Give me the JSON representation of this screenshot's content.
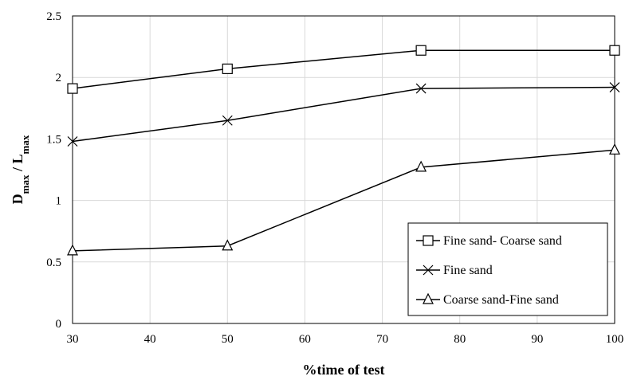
{
  "chart_data": {
    "type": "line",
    "x": [
      30,
      50,
      75,
      100
    ],
    "series": [
      {
        "name": "Fine sand- Coarse sand",
        "marker": "square",
        "values": [
          1.91,
          2.07,
          2.22,
          2.22
        ]
      },
      {
        "name": "Fine sand",
        "marker": "x",
        "values": [
          1.48,
          1.65,
          1.91,
          1.92
        ]
      },
      {
        "name": "Coarse sand-Fine sand",
        "marker": "triangle",
        "values": [
          0.59,
          0.63,
          1.27,
          1.41
        ]
      }
    ],
    "xlabel": "%time of test",
    "ylabel_main": "D",
    "ylabel_sub1": "max",
    "ylabel_sep": " / ",
    "ylabel_main2": "L",
    "ylabel_sub2": "max",
    "xlim": [
      30,
      100
    ],
    "ylim": [
      0,
      2.5
    ],
    "xticks": [
      "30",
      "40",
      "50",
      "60",
      "70",
      "80",
      "90",
      "100"
    ],
    "yticks": [
      "0",
      "0.5",
      "1",
      "1.5",
      "2",
      "2.5"
    ],
    "grid": true,
    "legend_position": "bottom-right",
    "colors": {
      "line": "#000000",
      "grid": "#d9d9d9",
      "marker_fill": "#ffffff"
    }
  }
}
